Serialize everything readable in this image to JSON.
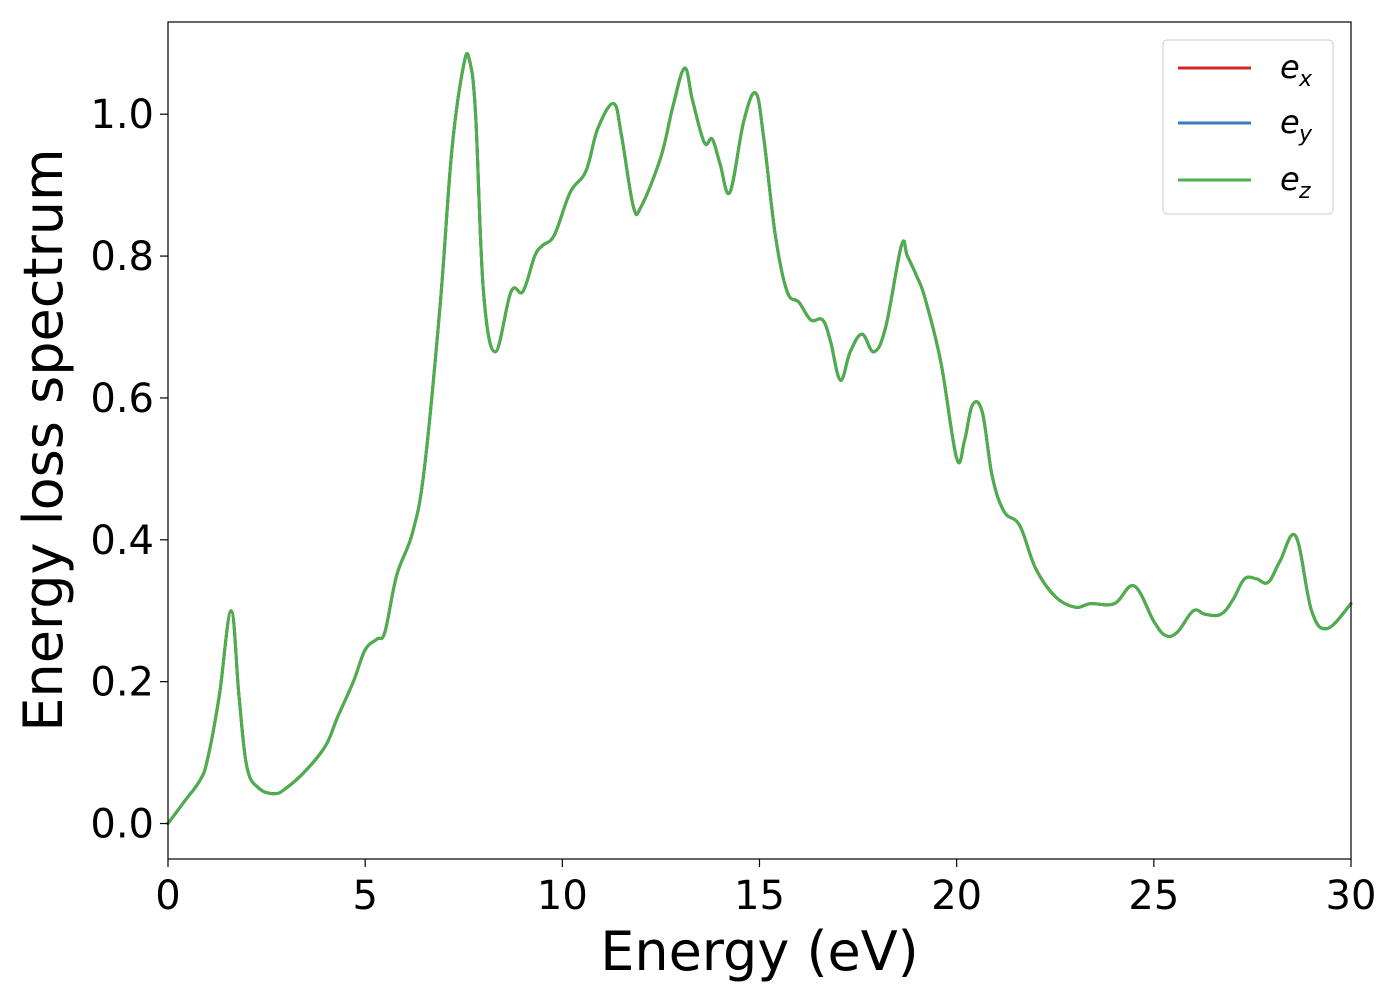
{
  "chart_data": {
    "type": "line",
    "xlabel": "Energy (eV)",
    "ylabel": "Energy loss spectrum",
    "xlim": [
      0,
      30
    ],
    "ylim": [
      -0.05,
      1.13
    ],
    "xticks": [
      0,
      5,
      10,
      15,
      20,
      25,
      30
    ],
    "xtick_labels": [
      "0",
      "5",
      "10",
      "15",
      "20",
      "25",
      "30"
    ],
    "yticks": [
      0.0,
      0.2,
      0.4,
      0.6,
      0.8,
      1.0
    ],
    "ytick_labels": [
      "0.0",
      "0.2",
      "0.4",
      "0.6",
      "0.8",
      "1.0"
    ],
    "grid": false,
    "legend_position": "top-right",
    "series": [
      {
        "name": "e_x",
        "label_base": "e",
        "label_sub": "x",
        "color": "#d62728",
        "x": [
          0.0,
          0.4,
          0.8,
          1.0,
          1.3,
          1.6,
          1.8,
          2.0,
          2.3,
          2.7,
          3.0,
          3.5,
          4.0,
          4.3,
          4.7,
          5.0,
          5.3,
          5.5,
          5.8,
          6.2,
          6.5,
          6.9,
          7.2,
          7.5,
          7.65,
          7.8,
          8.0,
          8.3,
          8.7,
          9.0,
          9.3,
          9.5,
          9.8,
          10.2,
          10.6,
          10.9,
          11.3,
          11.5,
          11.8,
          12.0,
          12.5,
          12.8,
          13.1,
          13.3,
          13.6,
          13.8,
          14.0,
          14.25,
          14.6,
          14.9,
          15.1,
          15.4,
          15.7,
          16.0,
          16.3,
          16.6,
          16.8,
          17.05,
          17.3,
          17.6,
          17.9,
          18.2,
          18.6,
          18.75,
          19.0,
          19.2,
          19.6,
          20.0,
          20.2,
          20.4,
          20.65,
          20.9,
          21.2,
          21.6,
          22.0,
          22.5,
          23.0,
          23.4,
          24.0,
          24.5,
          25.0,
          25.3,
          25.6,
          26.0,
          26.3,
          26.7,
          27.0,
          27.3,
          27.6,
          27.9,
          28.2,
          28.6,
          29.0,
          29.4,
          30.0
        ],
        "y": [
          0.0,
          0.03,
          0.06,
          0.09,
          0.18,
          0.3,
          0.18,
          0.08,
          0.05,
          0.042,
          0.05,
          0.075,
          0.11,
          0.15,
          0.2,
          0.245,
          0.26,
          0.27,
          0.35,
          0.41,
          0.5,
          0.73,
          0.95,
          1.07,
          1.075,
          1.0,
          0.75,
          0.665,
          0.75,
          0.75,
          0.8,
          0.815,
          0.83,
          0.89,
          0.92,
          0.98,
          1.015,
          0.97,
          0.87,
          0.87,
          0.94,
          1.01,
          1.065,
          1.02,
          0.96,
          0.965,
          0.93,
          0.89,
          0.99,
          1.03,
          0.97,
          0.83,
          0.75,
          0.735,
          0.71,
          0.71,
          0.68,
          0.625,
          0.665,
          0.69,
          0.665,
          0.7,
          0.815,
          0.8,
          0.77,
          0.74,
          0.65,
          0.515,
          0.54,
          0.59,
          0.58,
          0.49,
          0.44,
          0.42,
          0.36,
          0.32,
          0.305,
          0.31,
          0.31,
          0.335,
          0.285,
          0.265,
          0.27,
          0.3,
          0.295,
          0.295,
          0.315,
          0.345,
          0.345,
          0.34,
          0.37,
          0.405,
          0.3,
          0.275,
          0.31
        ]
      },
      {
        "name": "e_y",
        "label_base": "e",
        "label_sub": "y",
        "color": "#377eb8",
        "x": [
          0.0,
          0.4,
          0.8,
          1.0,
          1.3,
          1.6,
          1.8,
          2.0,
          2.3,
          2.7,
          3.0,
          3.5,
          4.0,
          4.3,
          4.7,
          5.0,
          5.3,
          5.5,
          5.8,
          6.2,
          6.5,
          6.9,
          7.2,
          7.5,
          7.65,
          7.8,
          8.0,
          8.3,
          8.7,
          9.0,
          9.3,
          9.5,
          9.8,
          10.2,
          10.6,
          10.9,
          11.3,
          11.5,
          11.8,
          12.0,
          12.5,
          12.8,
          13.1,
          13.3,
          13.6,
          13.8,
          14.0,
          14.25,
          14.6,
          14.9,
          15.1,
          15.4,
          15.7,
          16.0,
          16.3,
          16.6,
          16.8,
          17.05,
          17.3,
          17.6,
          17.9,
          18.2,
          18.6,
          18.75,
          19.0,
          19.2,
          19.6,
          20.0,
          20.2,
          20.4,
          20.65,
          20.9,
          21.2,
          21.6,
          22.0,
          22.5,
          23.0,
          23.4,
          24.0,
          24.5,
          25.0,
          25.3,
          25.6,
          26.0,
          26.3,
          26.7,
          27.0,
          27.3,
          27.6,
          27.9,
          28.2,
          28.6,
          29.0,
          29.4,
          30.0
        ],
        "y": [
          0.0,
          0.03,
          0.06,
          0.09,
          0.18,
          0.3,
          0.18,
          0.08,
          0.05,
          0.042,
          0.05,
          0.075,
          0.11,
          0.15,
          0.2,
          0.245,
          0.26,
          0.27,
          0.35,
          0.41,
          0.5,
          0.73,
          0.95,
          1.07,
          1.075,
          1.0,
          0.75,
          0.665,
          0.75,
          0.75,
          0.8,
          0.815,
          0.83,
          0.89,
          0.92,
          0.98,
          1.015,
          0.97,
          0.87,
          0.87,
          0.94,
          1.01,
          1.065,
          1.02,
          0.96,
          0.965,
          0.93,
          0.89,
          0.99,
          1.03,
          0.97,
          0.83,
          0.75,
          0.735,
          0.71,
          0.71,
          0.68,
          0.625,
          0.665,
          0.69,
          0.665,
          0.7,
          0.815,
          0.8,
          0.77,
          0.74,
          0.65,
          0.515,
          0.54,
          0.59,
          0.58,
          0.49,
          0.44,
          0.42,
          0.36,
          0.32,
          0.305,
          0.31,
          0.31,
          0.335,
          0.285,
          0.265,
          0.27,
          0.3,
          0.295,
          0.295,
          0.315,
          0.345,
          0.345,
          0.34,
          0.37,
          0.405,
          0.3,
          0.275,
          0.31
        ]
      },
      {
        "name": "e_z",
        "label_base": "e",
        "label_sub": "z",
        "color": "#4daf4a",
        "x": [
          0.0,
          0.4,
          0.8,
          1.0,
          1.3,
          1.6,
          1.8,
          2.0,
          2.3,
          2.7,
          3.0,
          3.5,
          4.0,
          4.3,
          4.7,
          5.0,
          5.3,
          5.5,
          5.8,
          6.2,
          6.5,
          6.9,
          7.2,
          7.5,
          7.65,
          7.8,
          8.0,
          8.3,
          8.7,
          9.0,
          9.3,
          9.5,
          9.8,
          10.2,
          10.6,
          10.9,
          11.3,
          11.5,
          11.8,
          12.0,
          12.5,
          12.8,
          13.1,
          13.3,
          13.6,
          13.8,
          14.0,
          14.25,
          14.6,
          14.9,
          15.1,
          15.4,
          15.7,
          16.0,
          16.3,
          16.6,
          16.8,
          17.05,
          17.3,
          17.6,
          17.9,
          18.2,
          18.6,
          18.75,
          19.0,
          19.2,
          19.6,
          20.0,
          20.2,
          20.4,
          20.65,
          20.9,
          21.2,
          21.6,
          22.0,
          22.5,
          23.0,
          23.4,
          24.0,
          24.5,
          25.0,
          25.3,
          25.6,
          26.0,
          26.3,
          26.7,
          27.0,
          27.3,
          27.6,
          27.9,
          28.2,
          28.6,
          29.0,
          29.4,
          30.0
        ],
        "y": [
          0.0,
          0.03,
          0.06,
          0.09,
          0.18,
          0.3,
          0.18,
          0.08,
          0.05,
          0.042,
          0.05,
          0.075,
          0.11,
          0.15,
          0.2,
          0.245,
          0.26,
          0.27,
          0.35,
          0.41,
          0.5,
          0.73,
          0.95,
          1.07,
          1.075,
          1.0,
          0.75,
          0.665,
          0.75,
          0.75,
          0.8,
          0.815,
          0.83,
          0.89,
          0.92,
          0.98,
          1.015,
          0.97,
          0.87,
          0.87,
          0.94,
          1.01,
          1.065,
          1.02,
          0.96,
          0.965,
          0.93,
          0.89,
          0.99,
          1.03,
          0.97,
          0.83,
          0.75,
          0.735,
          0.71,
          0.71,
          0.68,
          0.625,
          0.665,
          0.69,
          0.665,
          0.7,
          0.815,
          0.8,
          0.77,
          0.74,
          0.65,
          0.515,
          0.54,
          0.59,
          0.58,
          0.49,
          0.44,
          0.42,
          0.36,
          0.32,
          0.305,
          0.31,
          0.31,
          0.335,
          0.285,
          0.265,
          0.27,
          0.3,
          0.295,
          0.295,
          0.315,
          0.345,
          0.345,
          0.34,
          0.37,
          0.405,
          0.3,
          0.275,
          0.31
        ]
      }
    ]
  }
}
